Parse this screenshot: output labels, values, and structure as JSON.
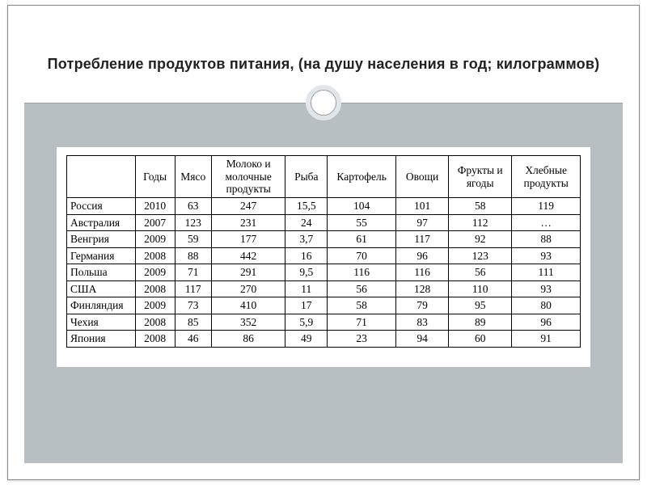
{
  "slide": {
    "title": "Потребление продуктов питания, (на душу населения в год; килограммов)",
    "background_color": "#b8bfc3",
    "rule_color": "#9aa2a7",
    "ornament_ring_color": "#e3e6e8"
  },
  "table": {
    "type": "table",
    "font_family": "Times New Roman",
    "font_size_pt": 10,
    "border_color": "#000000",
    "background_color": "#ffffff",
    "columns": [
      {
        "label": "",
        "align": "left",
        "width_pct": 13
      },
      {
        "label": "Годы",
        "align": "center",
        "width_pct": 7.5
      },
      {
        "label": "Мясо",
        "align": "center",
        "width_pct": 7
      },
      {
        "label": "Молоко и молочные продукты",
        "align": "center",
        "width_pct": 14
      },
      {
        "label": "Рыба",
        "align": "center",
        "width_pct": 8
      },
      {
        "label": "Картофель",
        "align": "center",
        "width_pct": 13
      },
      {
        "label": "Овощи",
        "align": "center",
        "width_pct": 10
      },
      {
        "label": "Фрукты и ягоды",
        "align": "center",
        "width_pct": 12
      },
      {
        "label": "Хлебные продукты",
        "align": "center",
        "width_pct": 13
      }
    ],
    "rows": [
      {
        "sep": true,
        "cells": [
          "Россия",
          "2010",
          "63",
          "247",
          "15,5",
          "104",
          "101",
          "58",
          "119"
        ]
      },
      {
        "sep": true,
        "cells": [
          "Австралия",
          "2007",
          "123",
          "231",
          "24",
          "55",
          "97",
          "112",
          "…"
        ]
      },
      {
        "sep": false,
        "cells": [
          "Венгрия",
          "2009",
          "59",
          "177",
          "3,7",
          "61",
          "117",
          "92",
          "88"
        ]
      },
      {
        "sep": false,
        "cells": [
          "Германия",
          "2008",
          "88",
          "442",
          "16",
          "70",
          "96",
          "123",
          "93"
        ]
      },
      {
        "sep": false,
        "cells": [
          "Польша",
          "2009",
          "71",
          "291",
          "9,5",
          "116",
          "116",
          "56",
          "111"
        ]
      },
      {
        "sep": true,
        "cells": [
          "США",
          "2008",
          "117",
          "270",
          "11",
          "56",
          "128",
          "110",
          "93"
        ]
      },
      {
        "sep": false,
        "cells": [
          "Финляндия",
          "2009",
          "73",
          "410",
          "17",
          "58",
          "79",
          "95",
          "80"
        ]
      },
      {
        "sep": true,
        "cells": [
          "Чехия",
          "2008",
          "85",
          "352",
          "5,9",
          "71",
          "83",
          "89",
          "96"
        ]
      },
      {
        "sep": false,
        "cells": [
          "Япония",
          "2008",
          "46",
          "86",
          "49",
          "23",
          "94",
          "60",
          "91"
        ]
      }
    ]
  }
}
